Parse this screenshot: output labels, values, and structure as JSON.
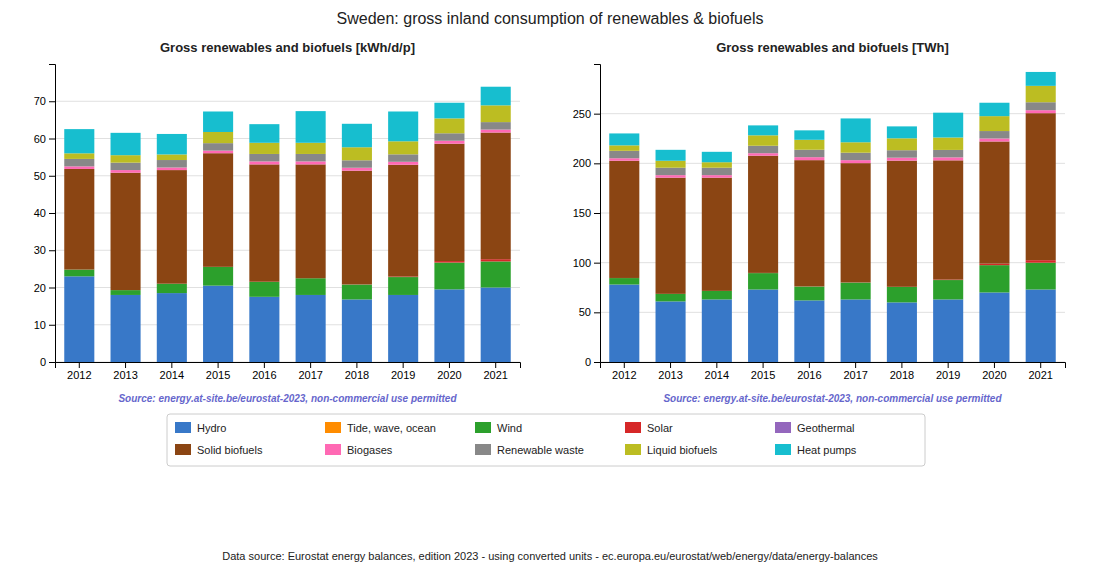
{
  "title": "Sweden: gross inland consumption of renewables & biofuels",
  "annotations": [
    "Data source: Eurostat energy balances, edition 2023 - using converted units - ec.europa.eu/eurostat/web/energy/data/energy-balances"
  ],
  "chart_data": [
    {
      "type": "bar",
      "stacked": true,
      "grid": true,
      "legend": "bottom",
      "title": "Gross renewables and biofuels [kWh/d/p]",
      "annotations": [
        "Source: energy.at-site.be/eurostat-2023, non-commercial use permitted"
      ],
      "categories": [
        "2012",
        "2013",
        "2014",
        "2015",
        "2016",
        "2017",
        "2018",
        "2019",
        "2020",
        "2021"
      ],
      "series": [
        {
          "name": "Hydro",
          "color": "#3878c8",
          "values": [
            23.0,
            18.0,
            18.5,
            20.5,
            17.5,
            18.0,
            16.8,
            18.0,
            19.5,
            20.0
          ]
        },
        {
          "name": "Tide, wave, ocean",
          "color": "#ff8c00",
          "values": [
            0.0,
            0.0,
            0.0,
            0.0,
            0.0,
            0.0,
            0.0,
            0.0,
            0.0,
            0.0
          ]
        },
        {
          "name": "Wind",
          "color": "#2ca02c",
          "values": [
            1.8,
            1.3,
            2.5,
            5.0,
            4.0,
            4.5,
            4.0,
            4.8,
            7.2,
            7.0
          ]
        },
        {
          "name": "Solar",
          "color": "#d62728",
          "values": [
            0.02,
            0.02,
            0.02,
            0.05,
            0.05,
            0.05,
            0.05,
            0.15,
            0.4,
            0.6
          ]
        },
        {
          "name": "Geothermal",
          "color": "#9467bd",
          "values": [
            0.0,
            0.0,
            0.0,
            0.0,
            0.0,
            0.0,
            0.0,
            0.0,
            0.0,
            0.0
          ]
        },
        {
          "name": "Solid biofuels",
          "color": "#8B4513",
          "values": [
            27.0,
            31.5,
            30.5,
            30.5,
            31.5,
            30.5,
            30.5,
            30.0,
            31.5,
            34.0
          ]
        },
        {
          "name": "Biogases",
          "color": "#ff69b4",
          "values": [
            0.7,
            0.7,
            0.7,
            0.7,
            0.8,
            0.8,
            0.8,
            0.8,
            0.8,
            0.8
          ]
        },
        {
          "name": "Renewable waste",
          "color": "#888888",
          "values": [
            2.0,
            2.0,
            2.0,
            2.0,
            2.0,
            2.0,
            2.0,
            2.0,
            2.0,
            2.0
          ]
        },
        {
          "name": "Liquid biofuels",
          "color": "#bcbd22",
          "values": [
            1.5,
            2.0,
            1.5,
            3.0,
            3.0,
            3.0,
            3.5,
            3.5,
            4.0,
            4.5
          ]
        },
        {
          "name": "Heat pumps",
          "color": "#17becf",
          "values": [
            6.5,
            6.0,
            5.5,
            5.5,
            5.0,
            8.5,
            6.3,
            8.0,
            4.2,
            5.0
          ]
        }
      ],
      "ylim": [
        0,
        80
      ],
      "yticks": [
        0,
        10,
        20,
        30,
        40,
        50,
        60,
        70
      ]
    },
    {
      "type": "bar",
      "stacked": true,
      "grid": true,
      "title": "Gross renewables and biofuels [TWh]",
      "annotations": [
        "Source: energy.at-site.be/eurostat-2023, non-commercial use permitted"
      ],
      "categories": [
        "2012",
        "2013",
        "2014",
        "2015",
        "2016",
        "2017",
        "2018",
        "2019",
        "2020",
        "2021"
      ],
      "series": [
        {
          "name": "Hydro",
          "color": "#3878c8",
          "values": [
            78.0,
            61.0,
            63.0,
            73.0,
            62.0,
            63.0,
            60.0,
            63.0,
            70.0,
            73.0
          ]
        },
        {
          "name": "Tide, wave, ocean",
          "color": "#ff8c00",
          "values": [
            0.0,
            0.0,
            0.0,
            0.0,
            0.0,
            0.0,
            0.0,
            0.0,
            0.0,
            0.0
          ]
        },
        {
          "name": "Wind",
          "color": "#2ca02c",
          "values": [
            6.5,
            7.5,
            8.5,
            16.5,
            14.0,
            17.0,
            15.5,
            19.5,
            27.5,
            27.0
          ]
        },
        {
          "name": "Solar",
          "color": "#d62728",
          "values": [
            0.1,
            0.1,
            0.1,
            0.2,
            0.2,
            0.2,
            0.2,
            0.5,
            1.5,
            2.5
          ]
        },
        {
          "name": "Geothermal",
          "color": "#9467bd",
          "values": [
            0.0,
            0.0,
            0.0,
            0.0,
            0.0,
            0.0,
            0.0,
            0.0,
            0.0,
            0.0
          ]
        },
        {
          "name": "Solid biofuels",
          "color": "#8B4513",
          "values": [
            118.0,
            117.0,
            114.0,
            118.0,
            127.0,
            120.0,
            127.0,
            120.0,
            123.0,
            148.0
          ]
        },
        {
          "name": "Biogases",
          "color": "#ff69b4",
          "values": [
            2.5,
            2.5,
            2.5,
            2.5,
            3.0,
            3.0,
            3.0,
            3.0,
            3.0,
            3.0
          ]
        },
        {
          "name": "Renewable waste",
          "color": "#888888",
          "values": [
            7.5,
            7.5,
            7.5,
            7.5,
            7.5,
            7.5,
            7.5,
            7.5,
            7.5,
            8.0
          ]
        },
        {
          "name": "Liquid biofuels",
          "color": "#bcbd22",
          "values": [
            5.5,
            7.0,
            5.5,
            10.5,
            10.0,
            10.5,
            12.0,
            12.5,
            15.0,
            16.5
          ]
        },
        {
          "name": "Heat pumps",
          "color": "#17becf",
          "values": [
            12.0,
            11.0,
            10.5,
            10.0,
            9.5,
            24.0,
            12.0,
            25.0,
            13.5,
            14.0
          ]
        }
      ],
      "ylim": [
        0,
        300
      ],
      "yticks": [
        0,
        50,
        100,
        150,
        200,
        250
      ]
    }
  ]
}
